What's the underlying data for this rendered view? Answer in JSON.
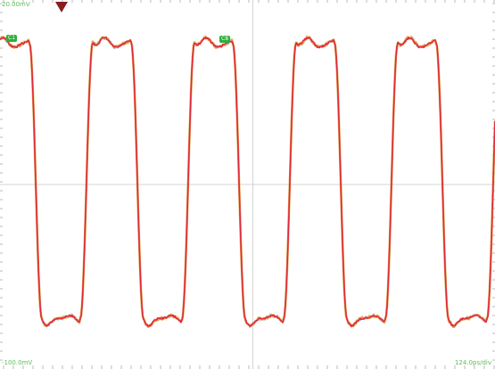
{
  "scope": {
    "top_left_label": "20.00mV",
    "bottom_left_label": "-100.0mV",
    "bottom_right_label": "124.0ps/div",
    "channel_marker": "C1",
    "cursor_marker": "C8"
  },
  "colors": {
    "background": "#ffffff",
    "grid": "#c9c9c9",
    "trace_primary": "#e0243a",
    "trace_secondary": "#e0a040",
    "trace_tertiary": "#4aa3e0",
    "trigger": "#8a1d1d",
    "label": "#3db33d"
  },
  "chart_data": {
    "type": "line",
    "series": [
      {
        "values": "square-wave with overshoot ripple, 5 high pulses visible"
      }
    ],
    "grid": true
  }
}
